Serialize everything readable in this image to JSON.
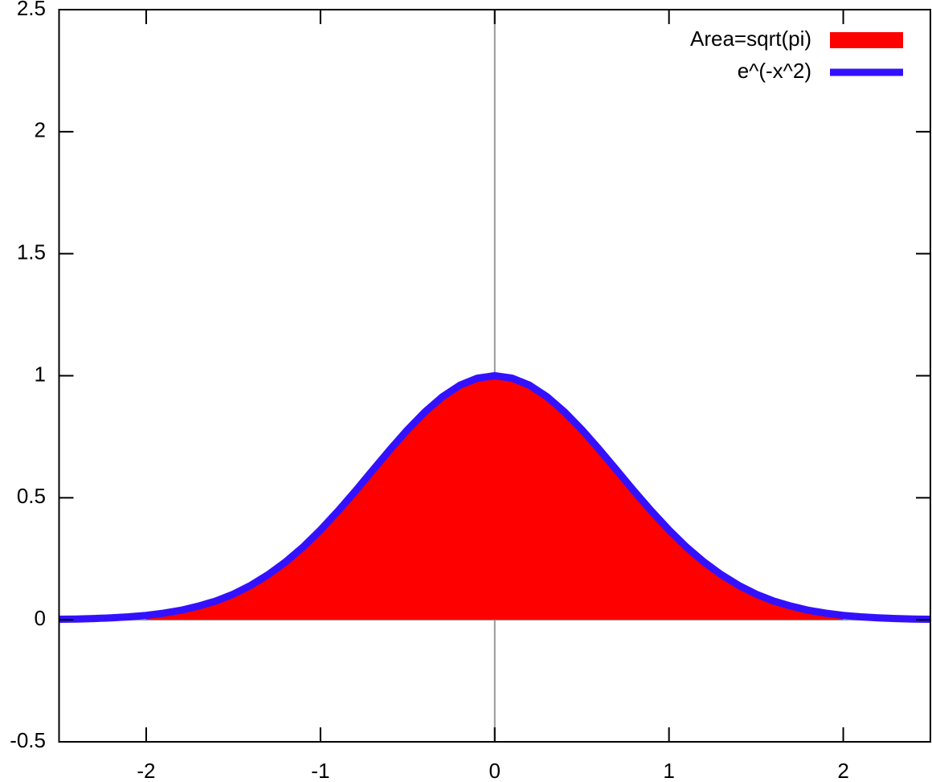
{
  "chart_data": {
    "type": "line",
    "xlim": [
      -2.5,
      2.5
    ],
    "xticks": [
      -2,
      -1,
      0,
      1,
      2
    ],
    "ylim": [
      -0.5,
      2.5
    ],
    "yticks": [
      -0.5,
      0,
      0.5,
      1,
      1.5,
      2,
      2.5
    ],
    "zeroaxis": true,
    "legend": "top-right",
    "series": [
      {
        "name": "Area=sqrt(pi)",
        "color": "#ff0000",
        "style": "filled",
        "x": [
          -2,
          -1.9,
          -1.8,
          -1.7,
          -1.6,
          -1.5,
          -1.4,
          -1.3,
          -1.2,
          -1.1,
          -1,
          -0.9,
          -0.8,
          -0.7,
          -0.6,
          -0.5,
          -0.4,
          -0.3,
          -0.2,
          -0.1,
          0,
          0.1,
          0.2,
          0.3,
          0.4,
          0.5,
          0.6,
          0.7,
          0.8,
          0.9,
          1,
          1.1,
          1.2,
          1.3,
          1.4,
          1.5,
          1.6,
          1.7,
          1.8,
          1.9,
          2
        ],
        "values": [
          0.018,
          0.027,
          0.039,
          0.056,
          0.077,
          0.105,
          0.141,
          0.185,
          0.237,
          0.298,
          0.368,
          0.445,
          0.527,
          0.613,
          0.698,
          0.779,
          0.852,
          0.914,
          0.961,
          0.99,
          1,
          0.99,
          0.961,
          0.914,
          0.852,
          0.779,
          0.698,
          0.613,
          0.527,
          0.445,
          0.368,
          0.298,
          0.237,
          0.185,
          0.141,
          0.105,
          0.077,
          0.056,
          0.039,
          0.027,
          0.018
        ]
      },
      {
        "name": "e^(-x^2)",
        "color": "#3311ff",
        "style": "line",
        "x": [
          -2.5,
          -2.4,
          -2.3,
          -2.2,
          -2.1,
          -2,
          -1.9,
          -1.8,
          -1.7,
          -1.6,
          -1.5,
          -1.4,
          -1.3,
          -1.2,
          -1.1,
          -1,
          -0.9,
          -0.8,
          -0.7,
          -0.6,
          -0.5,
          -0.4,
          -0.3,
          -0.2,
          -0.1,
          0,
          0.1,
          0.2,
          0.3,
          0.4,
          0.5,
          0.6,
          0.7,
          0.8,
          0.9,
          1,
          1.1,
          1.2,
          1.3,
          1.4,
          1.5,
          1.6,
          1.7,
          1.8,
          1.9,
          2,
          2.1,
          2.2,
          2.3,
          2.4,
          2.5
        ],
        "values": [
          0.002,
          0.003,
          0.005,
          0.008,
          0.012,
          0.018,
          0.027,
          0.039,
          0.056,
          0.077,
          0.105,
          0.141,
          0.185,
          0.237,
          0.298,
          0.368,
          0.445,
          0.527,
          0.613,
          0.698,
          0.779,
          0.852,
          0.914,
          0.961,
          0.99,
          1,
          0.99,
          0.961,
          0.914,
          0.852,
          0.779,
          0.698,
          0.613,
          0.527,
          0.445,
          0.368,
          0.298,
          0.237,
          0.185,
          0.141,
          0.105,
          0.077,
          0.056,
          0.039,
          0.027,
          0.018,
          0.012,
          0.008,
          0.005,
          0.003,
          0.002
        ]
      }
    ]
  }
}
